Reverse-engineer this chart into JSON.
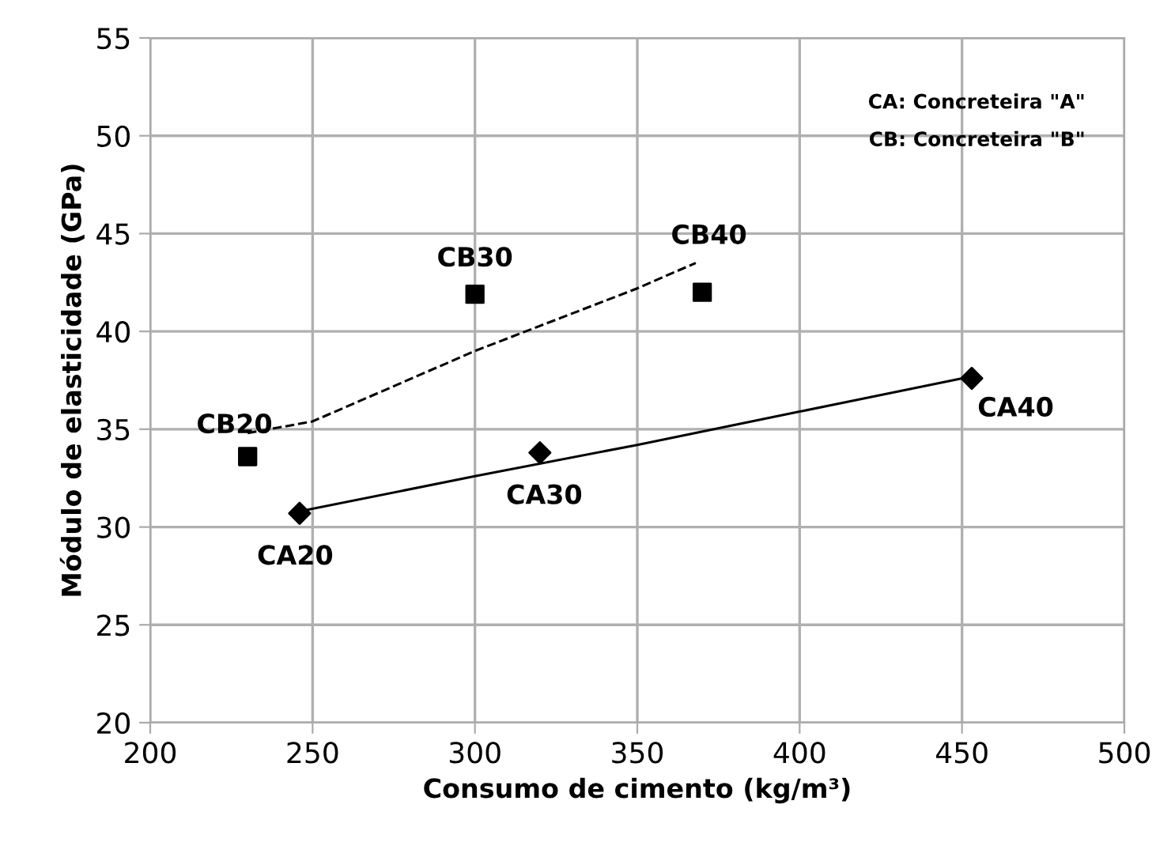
{
  "chart_data": {
    "type": "scatter",
    "xlabel": "Consumo de cimento (kg/m³)",
    "ylabel": "Módulo de elasticidade (GPa)",
    "xlim": [
      200,
      500
    ],
    "xticks": [
      200,
      250,
      300,
      350,
      400,
      450,
      500
    ],
    "ylim": [
      20,
      55
    ],
    "yticks": [
      20,
      25,
      30,
      35,
      40,
      45,
      50,
      55
    ],
    "grid": true,
    "series": [
      {
        "x": [
          246,
          320,
          453
        ],
        "values": [
          30.7,
          33.8,
          37.6
        ],
        "color": "#000000",
        "marker": "diamond"
      },
      {
        "x": [
          230,
          300,
          370
        ],
        "values": [
          33.6,
          41.9,
          42.0
        ],
        "color": "#000000",
        "marker": "square"
      },
      {
        "type": "line",
        "x": [
          246,
          300,
          350,
          400,
          453
        ],
        "values": [
          30.8,
          32.6,
          34.2,
          35.9,
          37.7
        ],
        "color": "#000000",
        "marker": "none",
        "line_style": "solid"
      },
      {
        "type": "line",
        "x": [
          230,
          250,
          300,
          350,
          368
        ],
        "values": [
          34.8,
          35.4,
          39.0,
          42.2,
          43.5
        ],
        "color": "#000000",
        "marker": "none",
        "line_style": "dashed"
      }
    ],
    "annotations": [
      {
        "text": "CA20",
        "x": 246,
        "y": 30.7
      },
      {
        "text": "CA30",
        "x": 320,
        "y": 33.8
      },
      {
        "text": "CA40",
        "x": 453,
        "y": 37.6
      },
      {
        "text": "CB20",
        "x": 230,
        "y": 33.6
      },
      {
        "text": "CB30",
        "x": 300,
        "y": 41.9
      },
      {
        "text": "CB40",
        "x": 368,
        "y": 43.5
      },
      "CA: Concreteira \"A\"",
      "CB: Concreteira \"B\""
    ]
  }
}
